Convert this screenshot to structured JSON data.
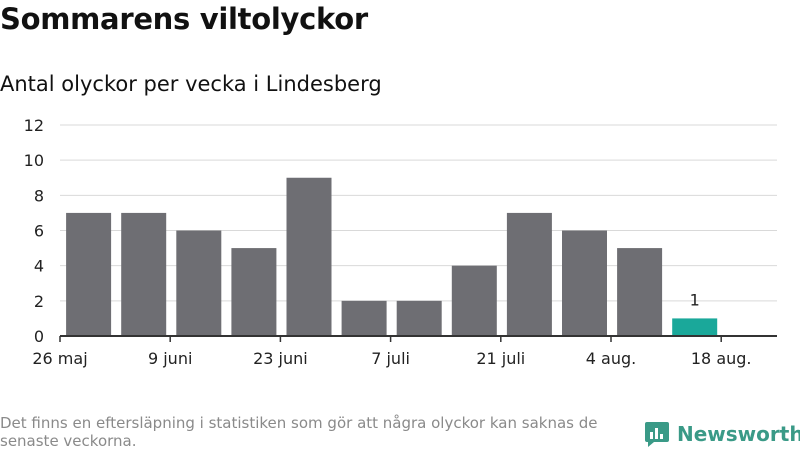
{
  "title": "Sommarens viltolyckor",
  "subtitle": "Antal olyckor per vecka i Lindesberg",
  "footnote": "Det finns en eftersläpning i statistiken som gör att några olyckor kan saknas de senaste veckorna.",
  "brand": "Newsworthy",
  "colors": {
    "bar": "#6e6e73",
    "highlight": "#1aa89a",
    "grid": "#d9d9d9",
    "axis": "#333333",
    "brand": "#3a9a87"
  },
  "chart_data": {
    "type": "bar",
    "title": "Sommarens viltolyckor",
    "subtitle": "Antal olyckor per vecka i Lindesberg",
    "x": [
      "2024-06-02",
      "2024-06-09",
      "2024-06-16",
      "2024-06-23",
      "2024-06-30",
      "2024-07-07",
      "2024-07-14",
      "2024-07-21",
      "2024-07-28",
      "2024-08-04",
      "2024-08-11",
      "2024-08-18"
    ],
    "values": [
      7,
      7,
      6,
      5,
      9,
      2,
      2,
      4,
      7,
      6,
      5,
      1
    ],
    "highlight_index": 11,
    "data_labels": [
      {
        "index": 11,
        "text": "1"
      }
    ],
    "x_tick_labels": [
      "26 maj",
      "9 juni",
      "23 juni",
      "7 juli",
      "21 juli",
      "4 aug.",
      "18 aug."
    ],
    "y_ticks": [
      0,
      2,
      4,
      6,
      8,
      10,
      12
    ],
    "ylim": [
      0,
      12
    ],
    "grid": true,
    "legend": "none"
  }
}
